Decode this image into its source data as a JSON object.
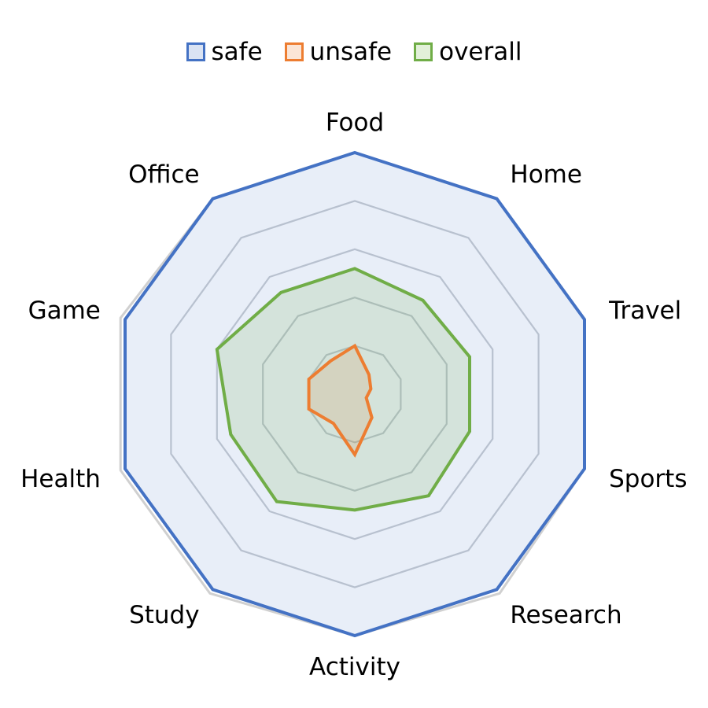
{
  "chart_data": {
    "type": "radar",
    "title": "",
    "categories": [
      "Food",
      "Home",
      "Travel",
      "Sports",
      "Research",
      "Activity",
      "Study",
      "Health",
      "Game",
      "Office"
    ],
    "series": [
      {
        "name": "safe",
        "color": "#4472C4",
        "values": [
          100,
          100,
          100,
          100,
          100,
          100,
          100,
          100,
          100,
          100
        ]
      },
      {
        "name": "unsafe",
        "color": "#ED7D31",
        "values": [
          20,
          10,
          7,
          5,
          12,
          25,
          15,
          20,
          20,
          17
        ]
      },
      {
        "name": "overall",
        "color": "#70AD47",
        "values": [
          52,
          48,
          50,
          50,
          52,
          48,
          55,
          54,
          60,
          52
        ]
      }
    ],
    "reference_series": {
      "values": [
        100,
        100,
        100,
        100,
        102,
        100,
        102,
        102,
        102,
        100
      ]
    },
    "r_range": [
      0,
      100
    ],
    "gridlines": [
      20,
      40,
      60,
      80,
      100
    ],
    "legend_position": "top"
  }
}
